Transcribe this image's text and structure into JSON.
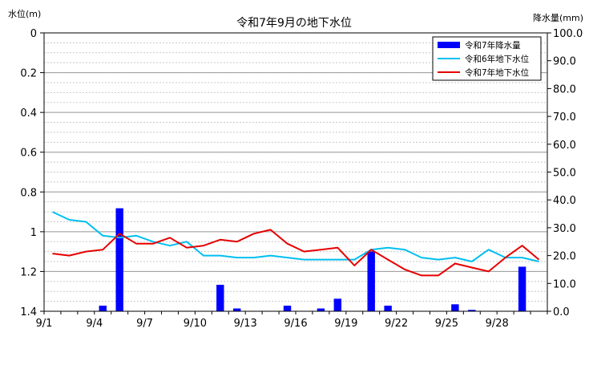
{
  "chart_data": {
    "type": "bar+line",
    "title": "令和7年9月の地下水位",
    "ylabel_left": "水位(m)",
    "ylabel_right": "降水量(mm)",
    "ylim_left": [
      0,
      1.4
    ],
    "ylim_left_inverted": true,
    "yticks_left": [
      "0",
      "0.2",
      "0.4",
      "0.6",
      "0.8",
      "1",
      "1.2",
      "1.4"
    ],
    "ylim_right": [
      0,
      100
    ],
    "yticks_right": [
      "100.0",
      "90.0",
      "80.0",
      "70.0",
      "60.0",
      "50.0",
      "40.0",
      "30.0",
      "20.0",
      "10.0",
      "0.0"
    ],
    "xticks": [
      "9/1",
      "9/4",
      "9/7",
      "9/10",
      "9/13",
      "9/16",
      "9/19",
      "9/22",
      "9/25",
      "9/28"
    ],
    "days": [
      1,
      2,
      3,
      4,
      5,
      6,
      7,
      8,
      9,
      10,
      11,
      12,
      13,
      14,
      15,
      16,
      17,
      18,
      19,
      20,
      21,
      22,
      23,
      24,
      25,
      26,
      27,
      28,
      29,
      30
    ],
    "grid": true,
    "legend_position": "top-right",
    "series": [
      {
        "name": "令和7年降水量",
        "kind": "bar",
        "axis": "right",
        "color": "#0000ff",
        "values": [
          0,
          0,
          0,
          2,
          37,
          0,
          0,
          0,
          0,
          0,
          9.5,
          1,
          0,
          0,
          2,
          0,
          1,
          4.5,
          0,
          21.5,
          2,
          0,
          0,
          0,
          2.5,
          0.5,
          0,
          0,
          16,
          0
        ]
      },
      {
        "name": "令和6年地下水位",
        "kind": "line",
        "axis": "left",
        "color": "#00bff0",
        "values": [
          0.9,
          0.94,
          0.95,
          1.02,
          1.03,
          1.02,
          1.05,
          1.07,
          1.05,
          1.12,
          1.12,
          1.13,
          1.13,
          1.12,
          1.13,
          1.14,
          1.14,
          1.14,
          1.14,
          1.09,
          1.08,
          1.09,
          1.13,
          1.14,
          1.13,
          1.15,
          1.09,
          1.13,
          1.13,
          1.15
        ]
      },
      {
        "name": "令和7年地下水位",
        "kind": "line",
        "axis": "left",
        "color": "#e60000",
        "values": [
          1.11,
          1.12,
          1.1,
          1.09,
          1.01,
          1.06,
          1.06,
          1.03,
          1.08,
          1.07,
          1.04,
          1.05,
          1.01,
          0.99,
          1.06,
          1.1,
          1.09,
          1.08,
          1.17,
          1.09,
          1.14,
          1.19,
          1.22,
          1.22,
          1.16,
          1.18,
          1.2,
          1.13,
          1.07,
          1.14
        ]
      }
    ]
  }
}
